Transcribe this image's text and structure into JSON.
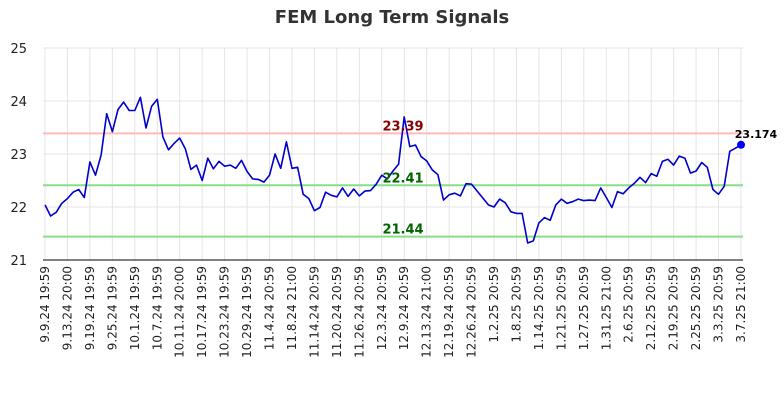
{
  "chart_data": {
    "type": "line",
    "title": "FEM Long Term Signals",
    "ylim": [
      21,
      25
    ],
    "yticks": [
      21,
      22,
      23,
      24,
      25
    ],
    "grid": true,
    "line_color": "#0000cc",
    "x_tick_labels": [
      "9.9.24 19:59",
      "9.13.24 20:00",
      "9.19.24 19:59",
      "9.25.24 19:59",
      "10.1.24 19:59",
      "10.7.24 19:59",
      "10.11.24 20:00",
      "10.17.24 19:59",
      "10.23.24 19:59",
      "10.29.24 19:59",
      "11.4.24 20:59",
      "11.8.24 21:00",
      "11.14.24 20:59",
      "11.20.24 20:59",
      "11.26.24 20:59",
      "12.3.24 20:59",
      "12.9.24 20:59",
      "12.13.24 21:00",
      "12.19.24 20:59",
      "12.26.24 20:59",
      "1.2.25 20:59",
      "1.8.25 20:59",
      "1.14.25 20:59",
      "1.21.25 20:59",
      "1.27.25 20:59",
      "1.31.25 21:00",
      "2.6.25 20:59",
      "2.12.25 20:59",
      "2.19.25 20:59",
      "2.25.25 20:59",
      "3.3.25 20:59",
      "3.7.25 21:00"
    ],
    "values": [
      22.04,
      21.83,
      21.9,
      22.07,
      22.16,
      22.28,
      22.33,
      22.18,
      22.85,
      22.6,
      22.98,
      23.76,
      23.42,
      23.84,
      23.98,
      23.82,
      23.82,
      24.07,
      23.49,
      23.9,
      24.03,
      23.32,
      23.08,
      23.2,
      23.3,
      23.1,
      22.71,
      22.79,
      22.5,
      22.92,
      22.72,
      22.86,
      22.77,
      22.79,
      22.73,
      22.88,
      22.67,
      22.53,
      22.52,
      22.47,
      22.6,
      23.0,
      22.73,
      23.23,
      22.73,
      22.75,
      22.24,
      22.16,
      21.93,
      21.99,
      22.28,
      22.22,
      22.19,
      22.36,
      22.2,
      22.34,
      22.21,
      22.3,
      22.31,
      22.43,
      22.6,
      22.53,
      22.68,
      22.81,
      23.7,
      23.14,
      23.17,
      22.95,
      22.87,
      22.7,
      22.61,
      22.13,
      22.23,
      22.26,
      22.21,
      22.44,
      22.43,
      22.3,
      22.17,
      22.04,
      22.0,
      22.15,
      22.08,
      21.91,
      21.88,
      21.88,
      21.32,
      21.36,
      21.7,
      21.8,
      21.75,
      22.04,
      22.15,
      22.07,
      22.1,
      22.15,
      22.12,
      22.13,
      22.12,
      22.36,
      22.18,
      21.99,
      22.29,
      22.25,
      22.36,
      22.45,
      22.56,
      22.46,
      22.63,
      22.58,
      22.86,
      22.9,
      22.79,
      22.96,
      22.92,
      22.64,
      22.68,
      22.84,
      22.75,
      22.33,
      22.24,
      22.39,
      23.05,
      23.11,
      23.174
    ],
    "reference_lines": [
      {
        "value": 23.39,
        "label": "23.39",
        "line_color": "#ffbbbb",
        "label_color": "#8b0000"
      },
      {
        "value": 22.41,
        "label": "22.41",
        "line_color": "#88dd88",
        "label_color": "#006400"
      },
      {
        "value": 21.44,
        "label": "21.44",
        "line_color": "#88dd88",
        "label_color": "#006400"
      }
    ],
    "last_value_label": "23.174",
    "last_marker_color": "#0000ff"
  }
}
